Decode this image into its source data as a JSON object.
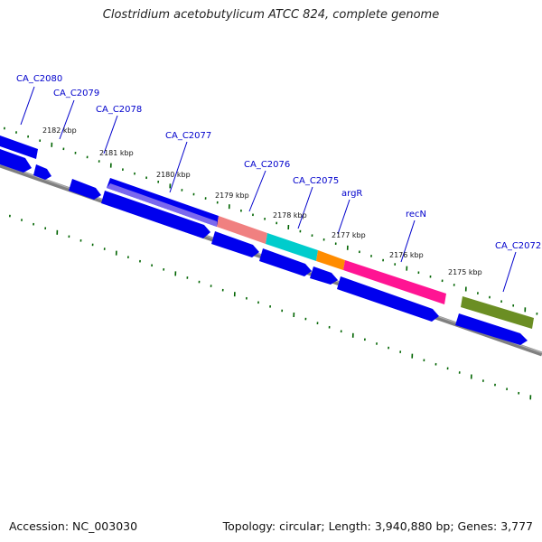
{
  "title": "Clostridium acetobutylicum ATCC 824, complete genome",
  "footer": {
    "accession": "Accession: NC_003030",
    "summary": "Topology: circular; Length: 3,940,880 bp; Genes: 3,777"
  },
  "colors": {
    "backbone": "#808080",
    "tick": "#006400",
    "gene_cds": "#0000ee",
    "gene_label": "#0000cc",
    "feature_purple": "#7b68ee",
    "feature_salmon": "#f08080",
    "feature_cyan": "#00cccc",
    "feature_orange": "#ff8c00",
    "feature_magenta": "#ff1493",
    "feature_olive": "#6b8e23"
  },
  "gene_labels": [
    "CA_C2080",
    "CA_C2079",
    "CA_C2078",
    "CA_C2077",
    "CA_C2076",
    "CA_C2075",
    "argR",
    "recN",
    "CA_C2072"
  ],
  "tick_labels": [
    "2182 kbp",
    "2181 kbp",
    "2180 kbp",
    "2179 kbp",
    "2178 kbp",
    "2177 kbp",
    "2176 kbp",
    "2175 kbp"
  ]
}
